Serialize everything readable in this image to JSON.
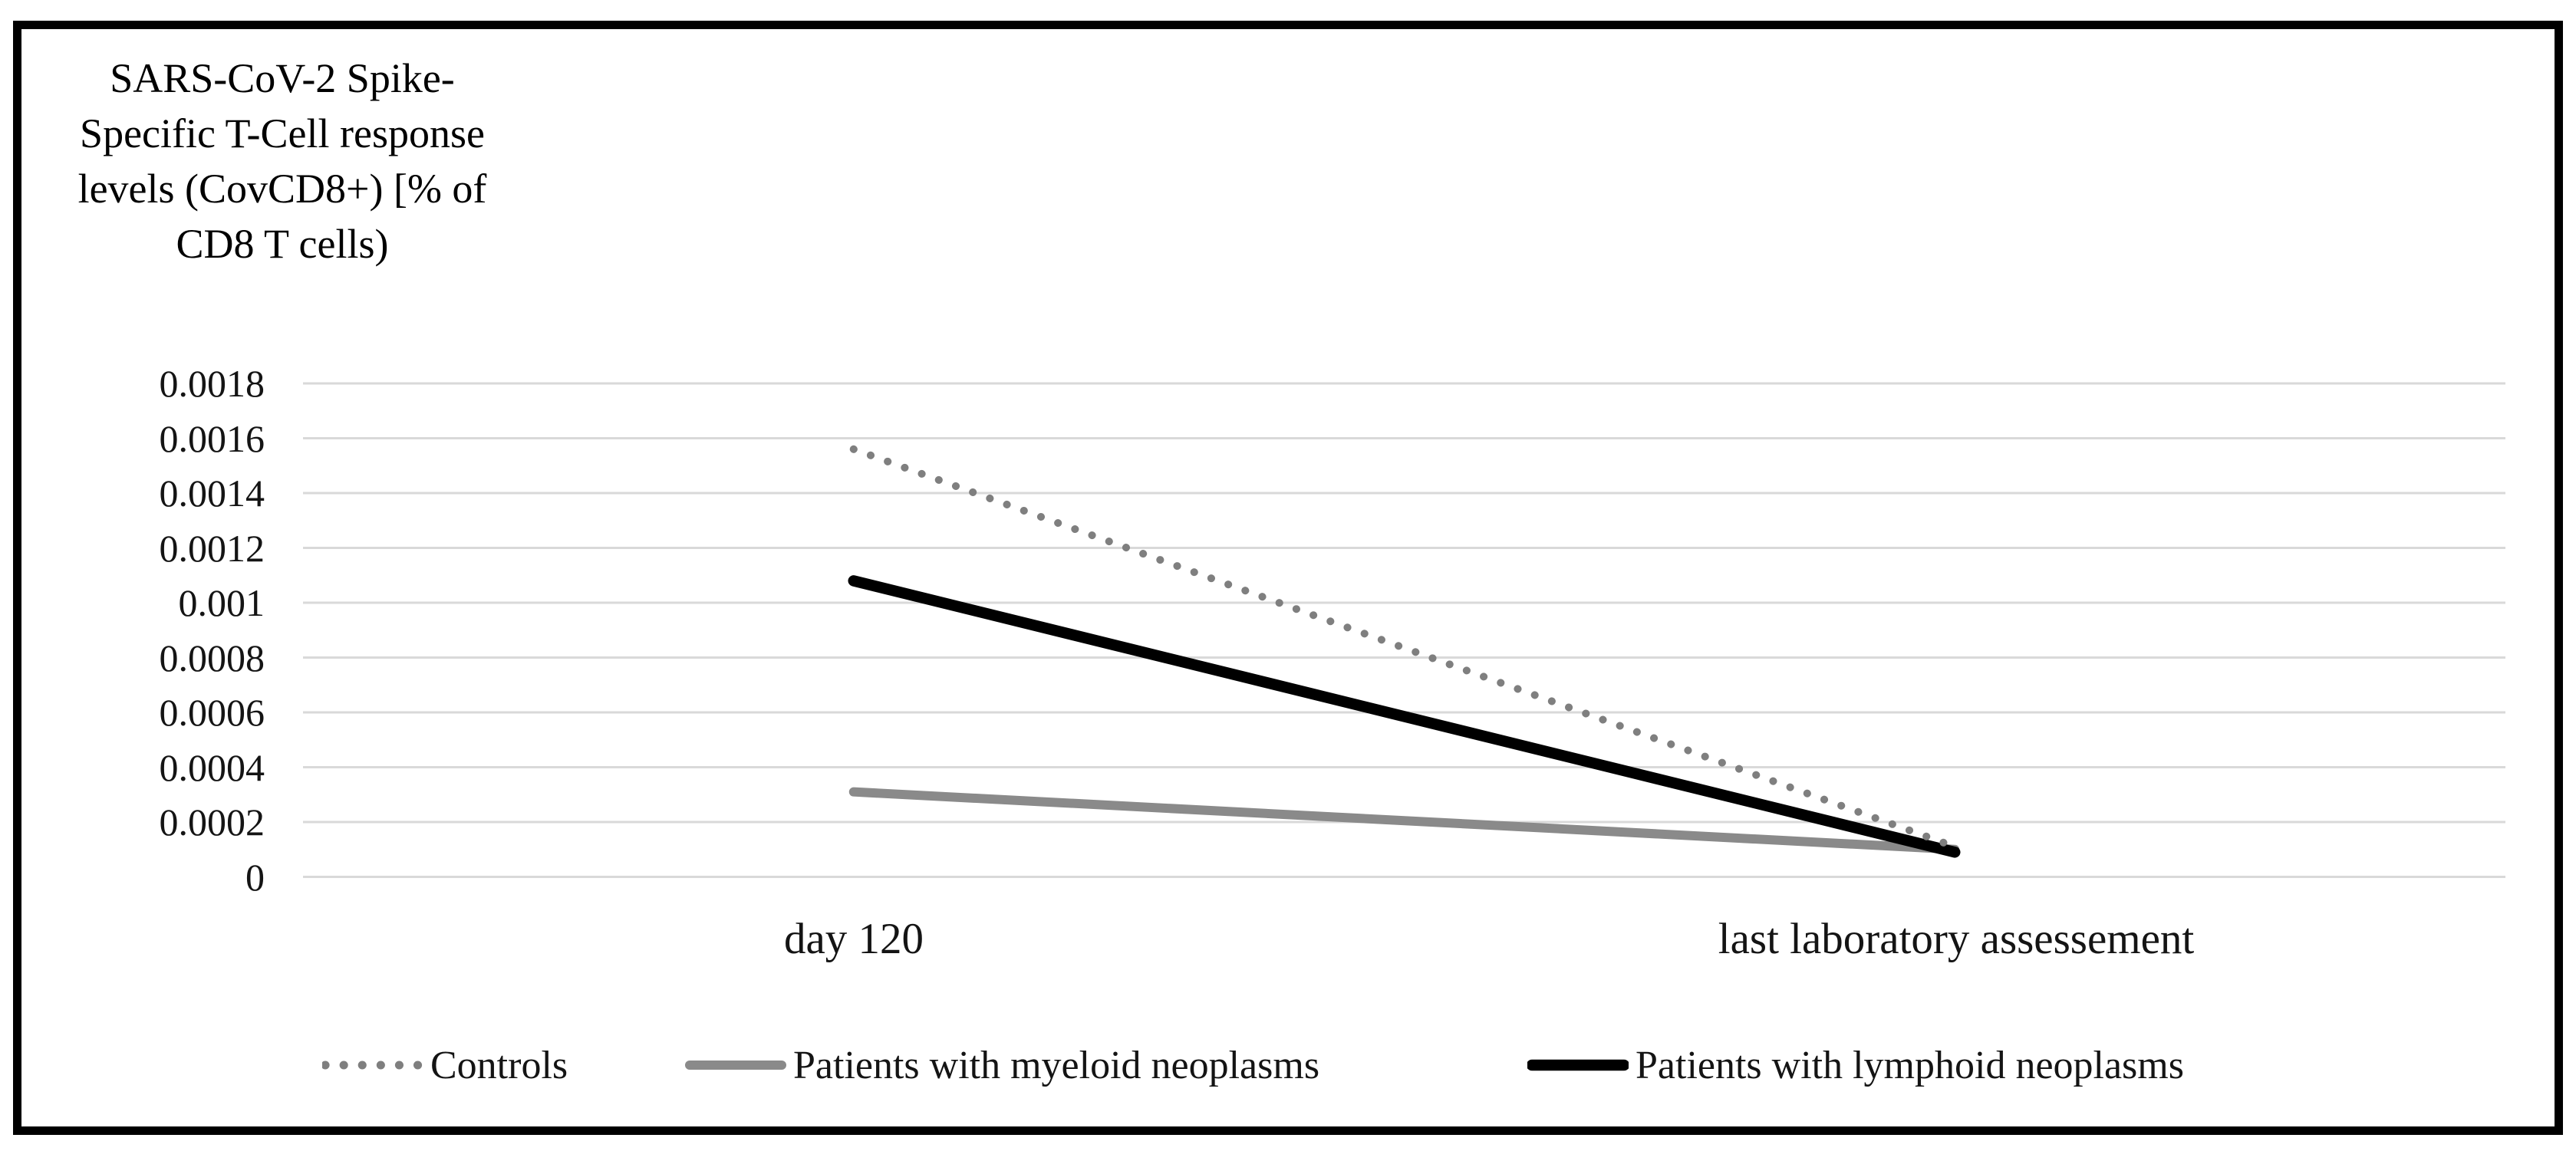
{
  "figure": {
    "title_lines": [
      "SARS-CoV-2 Spike-",
      "Specific T-Cell response",
      "levels (CovCD8+) [% of",
      "CD8 T cells)"
    ]
  },
  "chart_data": {
    "type": "line",
    "title": "SARS-CoV-2 Spike-Specific T-Cell response levels (CovCD8+) [% of CD8 T cells)",
    "categories": [
      "day 120",
      "last laboratory assessement"
    ],
    "series": [
      {
        "name": "Controls",
        "style": "dotted",
        "color": "#7f7f7f",
        "values": [
          0.00156,
          0.00011
        ]
      },
      {
        "name": "Patients with myeloid neoplasms",
        "style": "solid",
        "color": "#8a8a8a",
        "values": [
          0.00031,
          0.0001
        ]
      },
      {
        "name": "Patients with lymphoid neoplasms",
        "style": "solid",
        "color": "#000000",
        "values": [
          0.00108,
          9e-05
        ]
      }
    ],
    "y_ticks": [
      0,
      0.0002,
      0.0004,
      0.0006,
      0.0008,
      0.001,
      0.0012,
      0.0014,
      0.0016,
      0.0018
    ],
    "y_tick_labels": [
      "0",
      "0.0002",
      "0.0004",
      "0.0006",
      "0.0008",
      "0.001",
      "0.0012",
      "0.0014",
      "0.0016",
      "0.0018"
    ],
    "ylim": [
      0,
      0.0018
    ],
    "xlabel": "",
    "ylabel": "",
    "grid": "horizontal",
    "gridline_color": "#d9d9d9",
    "legend_position": "bottom"
  }
}
